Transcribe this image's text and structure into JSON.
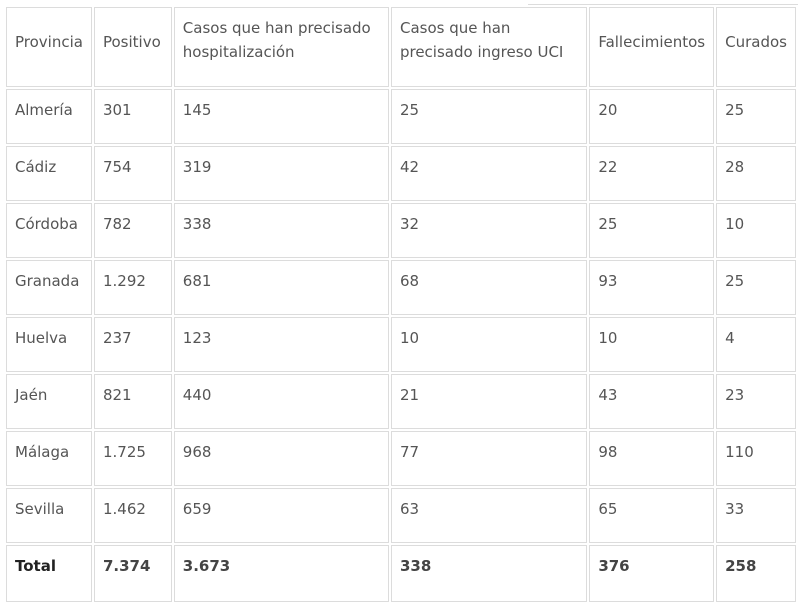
{
  "headers": [
    "Provincia",
    "Positivo",
    "Casos que han precisado hospitalización",
    "Casos que han precisado ingreso UCI",
    "Fallecimientos",
    "Curados"
  ],
  "rows": [
    {
      "provincia": "Almería",
      "positivo": "301",
      "hospitalizacion": "145",
      "uci": "25",
      "fallecimientos": "20",
      "curados": "25"
    },
    {
      "provincia": "Cádiz",
      "positivo": "754",
      "hospitalizacion": "319",
      "uci": "42",
      "fallecimientos": "22",
      "curados": "28"
    },
    {
      "provincia": "Córdoba",
      "positivo": "782",
      "hospitalizacion": "338",
      "uci": "32",
      "fallecimientos": "25",
      "curados": "10"
    },
    {
      "provincia": "Granada",
      "positivo": "1.292",
      "hospitalizacion": "681",
      "uci": "68",
      "fallecimientos": "93",
      "curados": "25"
    },
    {
      "provincia": "Huelva",
      "positivo": "237",
      "hospitalizacion": "123",
      "uci": "10",
      "fallecimientos": "10",
      "curados": "4"
    },
    {
      "provincia": "Jaén",
      "positivo": "821",
      "hospitalizacion": "440",
      "uci": "21",
      "fallecimientos": "43",
      "curados": "23"
    },
    {
      "provincia": "Málaga",
      "positivo": "1.725",
      "hospitalizacion": "968",
      "uci": "77",
      "fallecimientos": "98",
      "curados": "110"
    },
    {
      "provincia": "Sevilla",
      "positivo": "1.462",
      "hospitalizacion": "659",
      "uci": "63",
      "fallecimientos": "65",
      "curados": "33"
    }
  ],
  "total": {
    "provincia": "Total",
    "positivo": "7.374",
    "hospitalizacion": "3.673",
    "uci": "338",
    "fallecimientos": "376",
    "curados": "258"
  }
}
